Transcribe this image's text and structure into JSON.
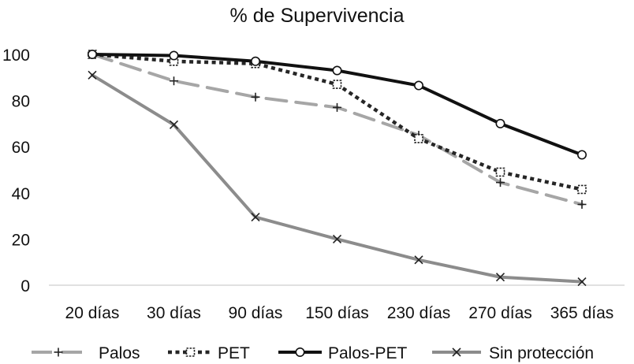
{
  "chart_data": {
    "type": "line",
    "title": "% de Supervivencia",
    "xlabel": "",
    "ylabel": "",
    "ylim": [
      0,
      100
    ],
    "yticks": [
      0,
      20,
      40,
      60,
      80,
      100
    ],
    "grid": false,
    "legend_position": "bottom",
    "categories": [
      "20 días",
      "30 días",
      "90 días",
      "150 días",
      "230 días",
      "270 días",
      "365 días"
    ],
    "series": [
      {
        "name": "Palos",
        "color": "#a6a6a6",
        "dash": "long-dash",
        "marker": "plus",
        "values": [
          100,
          88.5,
          81.5,
          77,
          65,
          44.5,
          35
        ]
      },
      {
        "name": "PET",
        "color": "#262626",
        "dash": "dotted",
        "marker": "square",
        "values": [
          100,
          97,
          96,
          87,
          63.5,
          49,
          41.5
        ]
      },
      {
        "name": "Palos-PET",
        "color": "#111111",
        "dash": "solid",
        "marker": "circle",
        "values": [
          100,
          99.5,
          97,
          93,
          86.5,
          70,
          56.5
        ]
      },
      {
        "name": "Sin protección",
        "color": "#8c8c8c",
        "dash": "solid",
        "marker": "x",
        "values": [
          91,
          69.5,
          29.5,
          20,
          11,
          3.5,
          1.5
        ]
      }
    ]
  }
}
